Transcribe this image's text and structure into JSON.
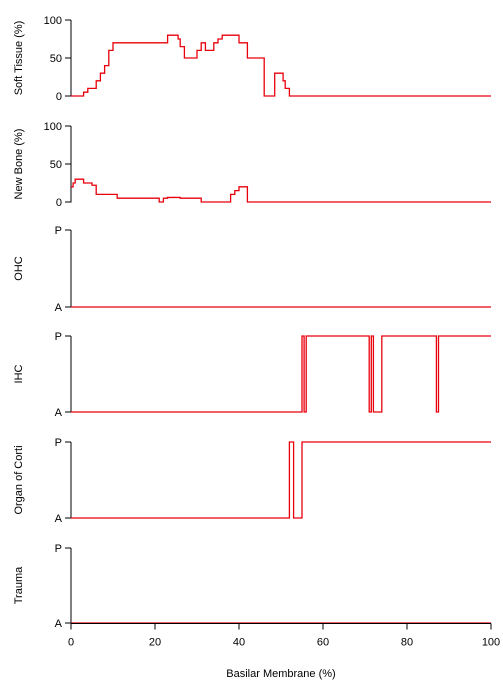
{
  "chart_data": [
    {
      "type": "line",
      "id": "soft-tissue",
      "ylabel": "Soft Tissue (%)",
      "xlim": [
        0,
        100
      ],
      "ylim": [
        0,
        100
      ],
      "yticks": [
        "0",
        "50",
        "100"
      ],
      "grid": false,
      "series": [
        {
          "color": "#e8000b",
          "x": [
            0,
            3,
            3,
            4,
            4,
            6,
            6,
            7,
            7,
            8,
            8,
            9,
            9,
            10,
            10,
            23,
            23,
            25.5,
            25.5,
            26,
            26,
            27,
            27,
            30,
            30,
            31,
            31,
            32,
            32,
            34,
            34,
            35,
            35,
            36,
            36,
            40,
            40,
            42,
            42,
            46,
            46,
            48.5,
            48.5,
            50.5,
            50.5,
            51,
            51,
            52,
            52,
            100
          ],
          "y": [
            0,
            0,
            5,
            5,
            10,
            10,
            20,
            20,
            30,
            30,
            40,
            40,
            60,
            60,
            70,
            70,
            80,
            80,
            75,
            75,
            65,
            65,
            50,
            50,
            60,
            60,
            70,
            70,
            60,
            60,
            70,
            70,
            75,
            75,
            80,
            80,
            70,
            70,
            50,
            50,
            0,
            0,
            30,
            30,
            20,
            20,
            10,
            10,
            0,
            0
          ]
        }
      ]
    },
    {
      "type": "line",
      "id": "new-bone",
      "ylabel": "New Bone (%)",
      "xlim": [
        0,
        100
      ],
      "ylim": [
        0,
        100
      ],
      "yticks": [
        "0",
        "50",
        "100"
      ],
      "grid": false,
      "series": [
        {
          "color": "#e8000b",
          "x": [
            0,
            0.5,
            0.5,
            1,
            1,
            3,
            3,
            5,
            5,
            6,
            6,
            11,
            11,
            21,
            21,
            22,
            22,
            23,
            23,
            26,
            26,
            31,
            31,
            38,
            38,
            39,
            39,
            40,
            40,
            42,
            42,
            100
          ],
          "y": [
            20,
            20,
            25,
            25,
            30,
            30,
            25,
            25,
            22,
            22,
            10,
            10,
            5,
            5,
            0,
            0,
            5,
            5,
            6,
            6,
            5,
            5,
            0,
            0,
            10,
            10,
            15,
            15,
            20,
            20,
            0,
            0
          ]
        }
      ]
    },
    {
      "type": "line",
      "id": "ohc",
      "ylabel": "OHC",
      "xlim": [
        0,
        100
      ],
      "ylim": [
        "A",
        "P"
      ],
      "yticks": [
        "A",
        "P"
      ],
      "grid": false,
      "series": [
        {
          "color": "#e8000b",
          "x": [
            0,
            100
          ],
          "y": [
            "A",
            "A"
          ]
        }
      ]
    },
    {
      "type": "line",
      "id": "ihc",
      "ylabel": "IHC",
      "xlim": [
        0,
        100
      ],
      "ylim": [
        "A",
        "P"
      ],
      "yticks": [
        "A",
        "P"
      ],
      "grid": false,
      "series": [
        {
          "color": "#e8000b",
          "x": [
            0,
            55,
            55,
            55.5,
            55.5,
            56,
            56,
            71,
            71,
            71.5,
            71.5,
            72,
            72,
            74,
            74,
            87,
            87,
            87.5,
            87.5,
            100
          ],
          "y": [
            "A",
            "A",
            "P",
            "P",
            "A",
            "A",
            "P",
            "P",
            "A",
            "A",
            "P",
            "P",
            "A",
            "A",
            "P",
            "P",
            "A",
            "A",
            "P",
            "P"
          ]
        }
      ]
    },
    {
      "type": "line",
      "id": "organ-of-corti",
      "ylabel": "Organ of Corti",
      "xlim": [
        0,
        100
      ],
      "ylim": [
        "A",
        "P"
      ],
      "yticks": [
        "A",
        "P"
      ],
      "grid": false,
      "series": [
        {
          "color": "#e8000b",
          "x": [
            0,
            52,
            52,
            53,
            53,
            55,
            55,
            100
          ],
          "y": [
            "A",
            "A",
            "P",
            "P",
            "A",
            "A",
            "P",
            "P"
          ]
        }
      ]
    },
    {
      "type": "line",
      "id": "trauma",
      "ylabel": "Trauma",
      "xlabel": "Basilar Membrane (%)",
      "xlim": [
        0,
        100
      ],
      "xticks": [
        "0",
        "20",
        "40",
        "60",
        "80",
        "100"
      ],
      "ylim": [
        "A",
        "P"
      ],
      "yticks": [
        "A",
        "P"
      ],
      "grid": false,
      "series": [
        {
          "color": "#e8000b",
          "x": [
            0,
            100
          ],
          "y": [
            "A",
            "A"
          ]
        }
      ]
    }
  ]
}
